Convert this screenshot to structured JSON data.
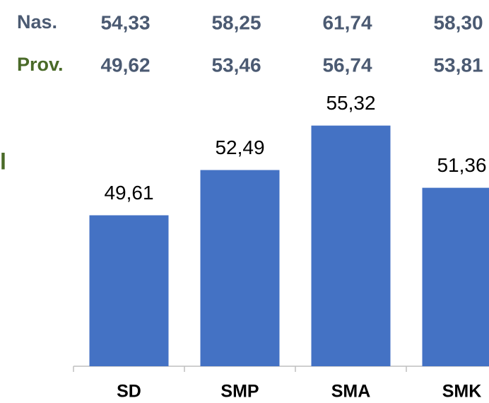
{
  "chart_data": {
    "type": "bar",
    "header_rows": [
      {
        "label": "Nas.",
        "values": [
          "54,33",
          "58,25",
          "61,74",
          "58,30"
        ]
      },
      {
        "label": "Prov.",
        "values": [
          "49,62",
          "53,46",
          "56,74",
          "53,81"
        ]
      }
    ],
    "side_label": "l",
    "categories": [
      "SD",
      "SMP",
      "SMA",
      "SMK"
    ],
    "values": [
      49.61,
      52.49,
      55.32,
      51.36
    ],
    "value_labels": [
      "49,61",
      "52,49",
      "55,32",
      "51,36"
    ],
    "color": "#4472c4",
    "ylim": [
      40,
      63
    ]
  }
}
